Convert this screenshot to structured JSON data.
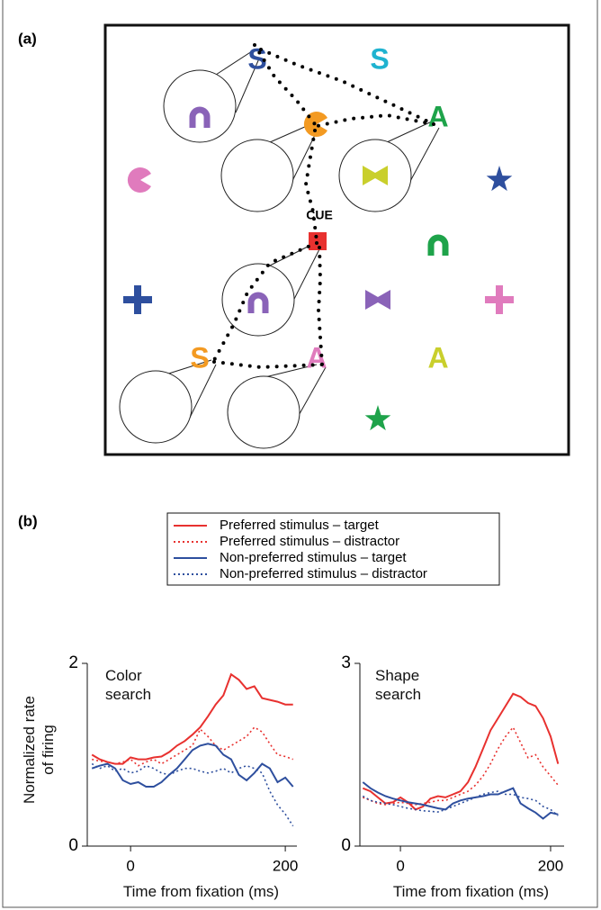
{
  "labels": {
    "panel_a": "(a)",
    "panel_b": "(b)"
  },
  "display": {
    "cue": "CUE",
    "letters": [
      "S",
      "S",
      "A",
      "S",
      "A",
      "A"
    ]
  },
  "chart_data": [
    {
      "type": "line",
      "title": "Color search",
      "ylabel": "Normalized rate of firing",
      "xlabel": "Time from fixation (ms)",
      "x": [
        -50,
        -40,
        -30,
        -20,
        -10,
        0,
        10,
        20,
        30,
        40,
        50,
        60,
        70,
        80,
        90,
        100,
        110,
        120,
        130,
        140,
        150,
        160,
        170,
        180,
        190,
        200,
        210
      ],
      "xlim": [
        -56,
        215
      ],
      "xticks": [
        0,
        200
      ],
      "ylim": [
        0,
        2
      ],
      "yticks": [
        0,
        2
      ],
      "series": [
        {
          "name": "Preferred stimulus – target",
          "color": "#e8312f",
          "style": "solid",
          "values": [
            1.0,
            0.95,
            0.92,
            0.9,
            0.9,
            0.97,
            0.95,
            0.95,
            0.97,
            0.98,
            1.03,
            1.1,
            1.15,
            1.22,
            1.3,
            1.42,
            1.55,
            1.65,
            1.88,
            1.82,
            1.72,
            1.75,
            1.62,
            1.6,
            1.58,
            1.55,
            1.55
          ]
        },
        {
          "name": "Preferred stimulus – distractor",
          "color": "#e8312f",
          "style": "dotted",
          "values": [
            0.95,
            0.93,
            0.92,
            0.9,
            0.92,
            0.95,
            0.88,
            0.92,
            0.95,
            0.9,
            0.95,
            1.0,
            1.05,
            1.1,
            1.28,
            1.2,
            1.1,
            1.05,
            1.1,
            1.15,
            1.2,
            1.3,
            1.25,
            1.12,
            1.0,
            0.98,
            0.95
          ]
        },
        {
          "name": "Non-preferred stimulus – target",
          "color": "#2e4f9e",
          "style": "solid",
          "values": [
            0.85,
            0.88,
            0.9,
            0.85,
            0.72,
            0.68,
            0.7,
            0.65,
            0.65,
            0.7,
            0.78,
            0.85,
            0.95,
            1.05,
            1.1,
            1.12,
            1.1,
            1.0,
            0.95,
            0.78,
            0.72,
            0.8,
            0.9,
            0.85,
            0.7,
            0.75,
            0.65
          ]
        },
        {
          "name": "Non-preferred stimulus – distractor",
          "color": "#2e4f9e",
          "style": "dotted",
          "values": [
            0.9,
            0.85,
            0.88,
            0.82,
            0.85,
            0.8,
            0.82,
            0.88,
            0.85,
            0.8,
            0.78,
            0.82,
            0.85,
            0.85,
            0.82,
            0.8,
            0.82,
            0.85,
            0.8,
            0.85,
            0.88,
            0.85,
            0.8,
            0.6,
            0.45,
            0.35,
            0.22
          ]
        }
      ]
    },
    {
      "type": "line",
      "title": "Shape search",
      "xlabel": "Time from fixation (ms)",
      "x": [
        -50,
        -40,
        -30,
        -20,
        -10,
        0,
        10,
        20,
        30,
        40,
        50,
        60,
        70,
        80,
        90,
        100,
        110,
        120,
        130,
        140,
        150,
        160,
        170,
        180,
        190,
        200,
        210
      ],
      "xlim": [
        -54,
        218
      ],
      "xticks": [
        0,
        200
      ],
      "ylim": [
        0,
        3
      ],
      "yticks": [
        0,
        3
      ],
      "series": [
        {
          "color": "#e8312f",
          "style": "solid",
          "values": [
            0.95,
            0.9,
            0.8,
            0.7,
            0.72,
            0.8,
            0.72,
            0.6,
            0.65,
            0.78,
            0.82,
            0.8,
            0.85,
            0.9,
            1.05,
            1.3,
            1.6,
            1.9,
            2.1,
            2.3,
            2.5,
            2.45,
            2.35,
            2.3,
            2.1,
            1.8,
            1.35
          ]
        },
        {
          "color": "#e8312f",
          "style": "dotted",
          "values": [
            0.8,
            0.75,
            0.7,
            0.68,
            0.7,
            0.72,
            0.7,
            0.68,
            0.7,
            0.72,
            0.75,
            0.75,
            0.8,
            0.85,
            0.9,
            1.0,
            1.15,
            1.35,
            1.6,
            1.8,
            1.95,
            1.7,
            1.45,
            1.5,
            1.3,
            1.15,
            1.0
          ]
        },
        {
          "color": "#2e4f9e",
          "style": "solid",
          "values": [
            1.05,
            0.95,
            0.88,
            0.82,
            0.78,
            0.75,
            0.72,
            0.7,
            0.68,
            0.65,
            0.62,
            0.6,
            0.7,
            0.75,
            0.78,
            0.8,
            0.82,
            0.85,
            0.85,
            0.9,
            0.95,
            0.7,
            0.62,
            0.55,
            0.45,
            0.55,
            0.52
          ]
        },
        {
          "color": "#2e4f9e",
          "style": "dotted",
          "values": [
            0.82,
            0.75,
            0.72,
            0.7,
            0.68,
            0.65,
            0.62,
            0.6,
            0.58,
            0.57,
            0.56,
            0.6,
            0.65,
            0.7,
            0.75,
            0.8,
            0.85,
            0.88,
            0.9,
            0.85,
            0.85,
            0.8,
            0.78,
            0.75,
            0.65,
            0.6,
            0.5
          ]
        }
      ]
    }
  ]
}
